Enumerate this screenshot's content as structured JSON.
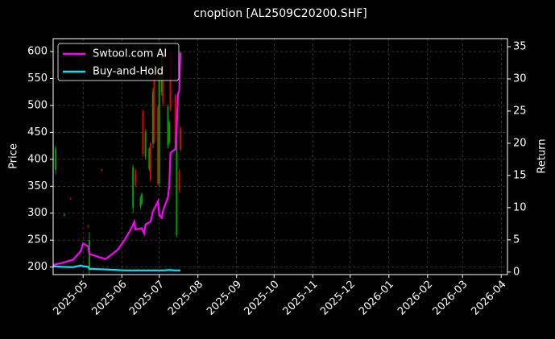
{
  "chart_data": {
    "type": "candlestick-returns",
    "title": "cnoption [AL2509C20200.SHF]",
    "ylabel": "Price",
    "y2label": "Return",
    "xlim": [
      "2025-04-07",
      "2026-04-06"
    ],
    "xticks": [
      "2025-05",
      "2025-06",
      "2025-07",
      "2025-08",
      "2025-09",
      "2025-10",
      "2025-11",
      "2025-12",
      "2026-01",
      "2026-02",
      "2026-03",
      "2026-04"
    ],
    "ylim": [
      186,
      624
    ],
    "yticks": [
      200,
      250,
      300,
      350,
      400,
      450,
      500,
      550,
      600
    ],
    "y2lim": [
      -0.4,
      36.25
    ],
    "y2ticks": [
      0,
      5,
      10,
      15,
      20,
      25,
      30,
      35
    ],
    "grid": true,
    "legend": "upper left",
    "candles": {
      "up_color": "#00a000",
      "down_color": "#e00000",
      "x": [
        "2025-04-09",
        "2025-04-16",
        "2025-04-21",
        "2025-05-05",
        "2025-05-06",
        "2025-05-16",
        "2025-06-10",
        "2025-06-12",
        "2025-06-16",
        "2025-06-17",
        "2025-06-18",
        "2025-06-20",
        "2025-06-23",
        "2025-06-24",
        "2025-06-26",
        "2025-06-27",
        "2025-06-30",
        "2025-07-01",
        "2025-07-03",
        "2025-07-04",
        "2025-07-08",
        "2025-07-09",
        "2025-07-10",
        "2025-07-14",
        "2025-07-15",
        "2025-07-17",
        "2025-07-18"
      ],
      "open": [
        380,
        296,
        328,
        277,
        200,
        381,
        310,
        380,
        312,
        318,
        490,
        405,
        382,
        430,
        430,
        555,
        498,
        355,
        525,
        598,
        425,
        432,
        598,
        518,
        260,
        378,
        458
      ],
      "high": [
        425,
        299,
        329,
        278,
        265,
        382,
        390,
        382,
        332,
        338,
        492,
        456,
        422,
        432,
        532,
        562,
        502,
        562,
        602,
        602,
        502,
        472,
        602,
        522,
        442,
        382,
        462
      ],
      "low": [
        372,
        294,
        325,
        273,
        185,
        378,
        300,
        348,
        308,
        315,
        405,
        400,
        378,
        358,
        420,
        428,
        350,
        348,
        518,
        498,
        420,
        428,
        488,
        420,
        255,
        338,
        415
      ],
      "close": [
        420,
        298,
        326,
        275,
        250,
        379,
        385,
        352,
        328,
        335,
        410,
        452,
        420,
        362,
        525,
        435,
        355,
        555,
        598,
        505,
        498,
        468,
        492,
        425,
        438,
        342,
        418
      ]
    },
    "x": [
      "2025-04-07",
      "2025-04-14",
      "2025-04-23",
      "2025-04-29",
      "2025-05-01",
      "2025-05-05",
      "2025-05-06",
      "2025-05-19",
      "2025-05-29",
      "2025-06-04",
      "2025-06-09",
      "2025-06-11",
      "2025-06-12",
      "2025-06-17",
      "2025-06-19",
      "2025-06-20",
      "2025-06-24",
      "2025-06-26",
      "2025-06-30",
      "2025-07-01",
      "2025-07-03",
      "2025-07-04",
      "2025-07-08",
      "2025-07-09",
      "2025-07-10",
      "2025-07-14",
      "2025-07-15",
      "2025-07-16",
      "2025-07-17",
      "2025-07-18"
    ],
    "series": [
      {
        "name": "Swtool.com AI",
        "color": "#ff00ff",
        "axis": "y2",
        "values": [
          1.1,
          1.4,
          1.9,
          3.2,
          4.4,
          4.0,
          2.8,
          2.0,
          3.5,
          5.2,
          6.9,
          7.8,
          6.6,
          6.8,
          6.0,
          7.4,
          7.8,
          9.4,
          11.0,
          8.8,
          8.4,
          9.5,
          11.6,
          13.3,
          18.5,
          19.1,
          22.3,
          27.6,
          28.1,
          34.1
        ]
      },
      {
        "name": "Buy-and-Hold",
        "color": "#00e5ff",
        "axis": "y2",
        "values": [
          0.9,
          0.8,
          0.75,
          1.0,
          0.9,
          0.8,
          0.5,
          0.4,
          0.3,
          0.25,
          0.25,
          0.25,
          0.25,
          0.25,
          0.25,
          0.25,
          0.25,
          0.25,
          0.25,
          0.25,
          0.25,
          0.25,
          0.3,
          0.3,
          0.3,
          0.25,
          0.25,
          0.25,
          0.25,
          0.25
        ]
      }
    ]
  }
}
